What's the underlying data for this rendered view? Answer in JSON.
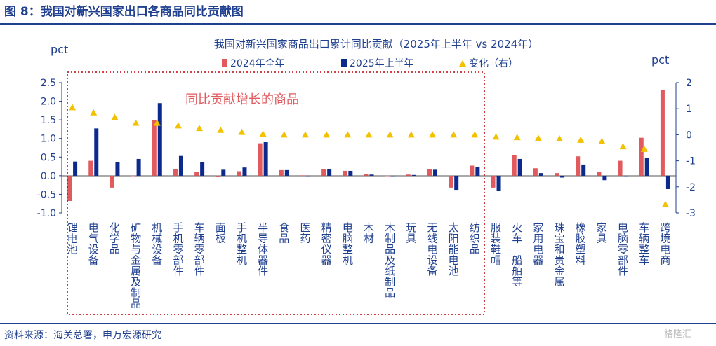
{
  "header": {
    "title": "图 8：我国对新兴国家出口各商品同比贡献图"
  },
  "footer": {
    "source": "资料来源：海关总署，申万宏源研究",
    "watermark": "格隆汇"
  },
  "annotation": "同比贡献增长的商品",
  "colors": {
    "s2024": "#e05a5e",
    "s2025": "#0c2a8c",
    "change": "#f2c200",
    "frame": "#c0000a",
    "heading": "#1f3f8f"
  },
  "chart_data": {
    "type": "bar",
    "title": "我国对新兴国家商品出口累计同比贡献（2025年上半年 vs 2024年）",
    "left_unit": "pct",
    "right_unit": "pct",
    "ylim_left": [
      -1.0,
      2.5
    ],
    "left_ticks": [
      "2.5",
      "2.0",
      "1.5",
      "1.0",
      "0.5",
      "0.0",
      "-0.5",
      "-1.0"
    ],
    "ylim_right": [
      -3,
      2
    ],
    "right_ticks": [
      "2",
      "1",
      "0",
      "-1",
      "-2",
      "-3"
    ],
    "legend": [
      "2024年全年",
      "2025年上半年",
      "变化（右）"
    ],
    "categories": [
      "锂电池",
      "电气设备",
      "化学品",
      "矿物与金属及制品",
      "机械设备",
      "手机零部件",
      "车辆零部件",
      "面板",
      "手机整机",
      "半导体器件",
      "食品",
      "医药",
      "精密仪器",
      "电脑整机",
      "木材",
      "木制品及纸制品",
      "玩具",
      "无线电设备",
      "太阳能电池",
      "纺织品",
      "服装鞋帽",
      "火车 船舶等",
      "家用电器",
      "珠宝和贵金属",
      "橡胶塑料",
      "家具",
      "电脑零部件",
      "车辆整车",
      "跨境电商"
    ],
    "series": [
      {
        "name": "2024年全年",
        "axis": "left",
        "values": [
          -0.68,
          0.4,
          -0.32,
          0.0,
          1.5,
          0.18,
          0.1,
          -0.03,
          0.12,
          0.87,
          0.15,
          0.01,
          0.17,
          0.13,
          0.04,
          0.0,
          0.03,
          0.18,
          -0.32,
          0.27,
          -0.32,
          0.55,
          0.2,
          0.07,
          0.52,
          0.1,
          0.4,
          1.02,
          2.3
        ]
      },
      {
        "name": "2025年上半年",
        "axis": "left",
        "values": [
          0.38,
          1.27,
          0.36,
          0.45,
          1.95,
          0.53,
          0.36,
          0.16,
          0.22,
          0.9,
          0.15,
          0.0,
          0.17,
          0.13,
          0.03,
          0.0,
          0.02,
          0.16,
          -0.38,
          0.23,
          -0.4,
          0.45,
          0.07,
          -0.05,
          0.3,
          -0.12,
          0.0,
          0.47,
          -0.36
        ]
      },
      {
        "name": "变化（右）",
        "axis": "right",
        "values": [
          1.05,
          0.85,
          0.67,
          0.45,
          0.45,
          0.35,
          0.25,
          0.18,
          0.1,
          0.03,
          0.0,
          0.0,
          0.0,
          0.0,
          0.0,
          0.0,
          0.0,
          0.0,
          0.0,
          0.0,
          -0.08,
          -0.1,
          -0.13,
          -0.15,
          -0.2,
          -0.25,
          -0.45,
          -0.55,
          -2.67
        ]
      }
    ]
  }
}
